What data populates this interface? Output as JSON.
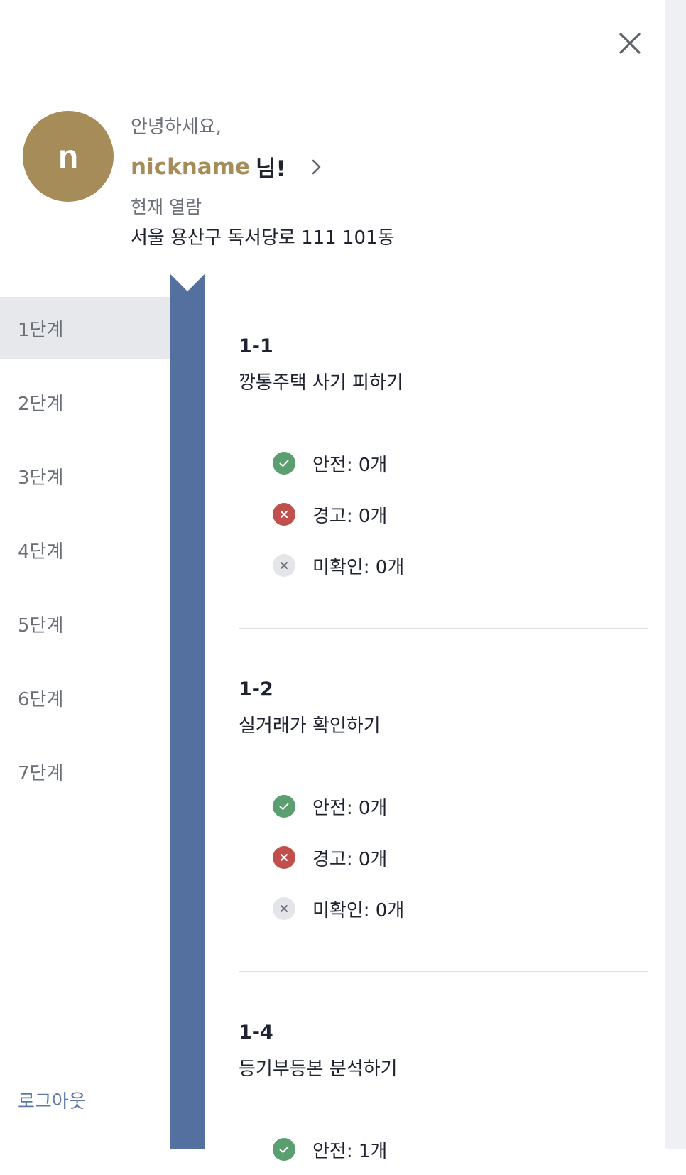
{
  "header": {
    "close_icon": "close-icon",
    "avatar_initial": "n",
    "greeting": "안녕하세요,",
    "nickname": "nickname",
    "nickname_suffix": "님!",
    "current_label": "현재 열람",
    "current_address": "서울 용산구 독서당로 111 101동"
  },
  "colors": {
    "brand_gold": "#a58c59",
    "ribbon_blue": "#54709e",
    "safe_green": "#5b9e70",
    "warn_red": "#c0504d",
    "unknown_gray": "#e3e5e8",
    "logout_blue": "#5a78a8"
  },
  "sidebar": {
    "stages": [
      "1단계",
      "2단계",
      "3단계",
      "4단계",
      "5단계",
      "6단계",
      "7단계"
    ],
    "active_index": 0,
    "logout_label": "로그아웃"
  },
  "sections": [
    {
      "code": "1-1",
      "title": "깡통주택 사기 피하기",
      "statuses": [
        {
          "icon": "check-circle-icon",
          "label": "안전: 0개"
        },
        {
          "icon": "x-circle-icon",
          "label": "경고: 0개"
        },
        {
          "icon": "unchecked-circle-icon",
          "label": "미확인: 0개"
        }
      ]
    },
    {
      "code": "1-2",
      "title": "실거래가 확인하기",
      "statuses": [
        {
          "icon": "check-circle-icon",
          "label": "안전: 0개"
        },
        {
          "icon": "x-circle-icon",
          "label": "경고: 0개"
        },
        {
          "icon": "unchecked-circle-icon",
          "label": "미확인: 0개"
        }
      ]
    },
    {
      "code": "1-4",
      "title": "등기부등본 분석하기",
      "statuses": [
        {
          "icon": "check-circle-icon",
          "label": "안전: 1개"
        }
      ]
    }
  ]
}
